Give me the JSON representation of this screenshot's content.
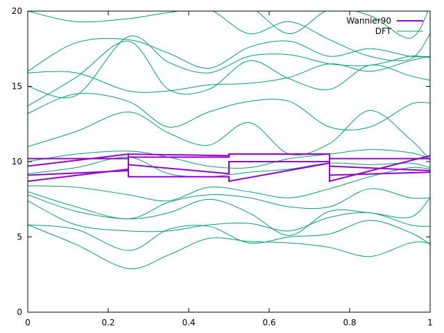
{
  "chart_data": {
    "type": "line",
    "title": "",
    "xlabel": "",
    "ylabel": "",
    "xlim": [
      0,
      1
    ],
    "ylim": [
      0,
      20
    ],
    "x_ticks": [
      0,
      0.2,
      0.4,
      0.6,
      0.8,
      1
    ],
    "x_tick_labels": [
      "0",
      "0.2",
      "0.4",
      "0.6",
      "0.8",
      "1"
    ],
    "y_ticks": [
      0,
      5,
      10,
      15,
      20
    ],
    "y_tick_labels": [
      "0",
      "5",
      "10",
      "15",
      "20"
    ],
    "grid": false,
    "legend": {
      "position": "top-right"
    },
    "series": [
      {
        "name": "Wannier90",
        "color": "#9400d3",
        "lines": [
          {
            "x": [
              0,
              0.25,
              0.25,
              0.5,
              0.5,
              0.75,
              0.75,
              1
            ],
            "y": [
              8.7,
              9.5,
              9.0,
              9.0,
              8.7,
              9.9,
              8.7,
              10.4
            ]
          },
          {
            "x": [
              0,
              0.25,
              0.25,
              0.5,
              0.5,
              0.75,
              0.75,
              1
            ],
            "y": [
              9.1,
              9.4,
              10.5,
              10.4,
              10.5,
              10.5,
              9.1,
              9.3
            ]
          },
          {
            "x": [
              0,
              0.25,
              0.25,
              0.5,
              0.5,
              0.75,
              0.75,
              1
            ],
            "y": [
              9.7,
              10.5,
              9.8,
              9.2,
              10.0,
              10.0,
              9.7,
              9.4
            ]
          },
          {
            "x": [
              0,
              0.25,
              0.25,
              0.5,
              0.5,
              0.75,
              0.75,
              1
            ],
            "y": [
              10.2,
              10.2,
              10.3,
              10.3,
              10.5,
              10.5,
              10.2,
              10.2
            ]
          }
        ]
      },
      {
        "name": "DFT",
        "color": "#009e73",
        "bands": [
          {
            "x": [
              0,
              0.12,
              0.25,
              0.35,
              0.45,
              0.55,
              0.65,
              0.75,
              0.85,
              0.95,
              1
            ],
            "y": [
              5.8,
              4.5,
              2.9,
              3.8,
              4.9,
              4.7,
              4.6,
              4.3,
              3.7,
              4.6,
              4.6
            ]
          },
          {
            "x": [
              0,
              0.12,
              0.25,
              0.35,
              0.45,
              0.55,
              0.65,
              0.75,
              0.85,
              0.95,
              1
            ],
            "y": [
              5.8,
              5.5,
              4.1,
              5.5,
              5.7,
              4.6,
              5.0,
              5.2,
              6.1,
              5.3,
              4.5
            ]
          },
          {
            "x": [
              0,
              0.12,
              0.25,
              0.35,
              0.45,
              0.55,
              0.65,
              0.75,
              0.85,
              0.95,
              1
            ],
            "y": [
              7.4,
              5.8,
              5.4,
              5.4,
              5.8,
              5.9,
              5.4,
              6.3,
              6.6,
              5.8,
              5.7
            ]
          },
          {
            "x": [
              0,
              0.12,
              0.25,
              0.35,
              0.45,
              0.55,
              0.65,
              0.75,
              0.85,
              0.95,
              1
            ],
            "y": [
              7.8,
              6.7,
              6.2,
              6.6,
              7.5,
              6.6,
              5.1,
              6.7,
              6.6,
              6.3,
              7.6
            ]
          },
          {
            "x": [
              0,
              0.12,
              0.25,
              0.35,
              0.45,
              0.55,
              0.65,
              0.75,
              0.85,
              0.95,
              1
            ],
            "y": [
              8.0,
              7.0,
              6.2,
              7.3,
              7.8,
              7.6,
              7.0,
              7.0,
              8.2,
              7.6,
              7.6
            ]
          },
          {
            "x": [
              0,
              0.12,
              0.25,
              0.35,
              0.45,
              0.55,
              0.65,
              0.75,
              0.85,
              0.95,
              1
            ],
            "y": [
              8.4,
              8.3,
              7.8,
              7.4,
              8.3,
              8.0,
              7.6,
              8.2,
              9.0,
              9.6,
              9.5
            ]
          },
          {
            "x": [
              0,
              0.12,
              0.25,
              0.35,
              0.45,
              0.55,
              0.65,
              0.75,
              0.85,
              0.95,
              1
            ],
            "y": [
              9.2,
              9.6,
              10.3,
              9.2,
              9.0,
              9.3,
              9.5,
              9.9,
              9.8,
              9.9,
              9.6
            ]
          },
          {
            "x": [
              0,
              0.12,
              0.25,
              0.35,
              0.45,
              0.55,
              0.65,
              0.75,
              0.85,
              0.95,
              1
            ],
            "y": [
              10.0,
              10.5,
              10.7,
              10.3,
              9.7,
              9.6,
              10.2,
              10.5,
              10.8,
              10.6,
              10.2
            ]
          },
          {
            "x": [
              0,
              0.12,
              0.25,
              0.35,
              0.45,
              0.55,
              0.65,
              0.75,
              0.85,
              0.95,
              1
            ],
            "y": [
              11.0,
              12.0,
              13.3,
              11.9,
              11.1,
              12.6,
              10.5,
              11.2,
              13.4,
              11.5,
              10.1
            ]
          },
          {
            "x": [
              0,
              0.12,
              0.25,
              0.35,
              0.45,
              0.55,
              0.65,
              0.75,
              0.85,
              0.95,
              1
            ],
            "y": [
              13.2,
              14.5,
              14.0,
              12.3,
              13.3,
              14.0,
              14.0,
              12.3,
              12.3,
              13.8,
              13.9
            ]
          },
          {
            "x": [
              0,
              0.12,
              0.25,
              0.35,
              0.45,
              0.55,
              0.65,
              0.75,
              0.85,
              0.95,
              1
            ],
            "y": [
              13.7,
              15.6,
              18.0,
              14.8,
              14.8,
              16.7,
              15.5,
              14.8,
              16.4,
              15.7,
              15.4
            ]
          },
          {
            "x": [
              0,
              0.12,
              0.25,
              0.35,
              0.45,
              0.55,
              0.65,
              0.75,
              0.85,
              0.95,
              1
            ],
            "y": [
              15.9,
              15.9,
              14.7,
              14.7,
              15.1,
              15.2,
              15.6,
              16.5,
              16.0,
              16.7,
              17.0
            ]
          },
          {
            "x": [
              0,
              0.12,
              0.25,
              0.35,
              0.45,
              0.55,
              0.65,
              0.75,
              0.85,
              0.95,
              1
            ],
            "y": [
              15.0,
              14.4,
              18.3,
              16.6,
              15.9,
              17.0,
              17.1,
              16.5,
              16.4,
              17.0,
              16.9
            ]
          },
          {
            "x": [
              0,
              0.12,
              0.25,
              0.35,
              0.45,
              0.55,
              0.65,
              0.75,
              0.85,
              0.95,
              1
            ],
            "y": [
              16.0,
              17.9,
              18.1,
              17.2,
              16.2,
              17.6,
              18.0,
              17.0,
              17.5,
              17.0,
              17.0
            ]
          },
          {
            "x": [
              0,
              0.12,
              0.25,
              0.35,
              0.45,
              0.55,
              0.65,
              0.75,
              0.85,
              0.95,
              1
            ],
            "y": [
              20.0,
              19.3,
              19.5,
              19.9,
              20.1,
              18.5,
              19.3,
              18.1,
              17.0,
              16.8,
              18.5
            ]
          },
          {
            "x": [
              0,
              0.12,
              0.25,
              0.35,
              0.45,
              0.55,
              0.65,
              0.75,
              0.85,
              0.95,
              1
            ],
            "y": [
              20.5,
              20.3,
              20.2,
              20.1,
              20.6,
              20.3,
              18.5,
              20.1,
              19.7,
              18.2,
              20.3
            ]
          }
        ]
      }
    ]
  }
}
